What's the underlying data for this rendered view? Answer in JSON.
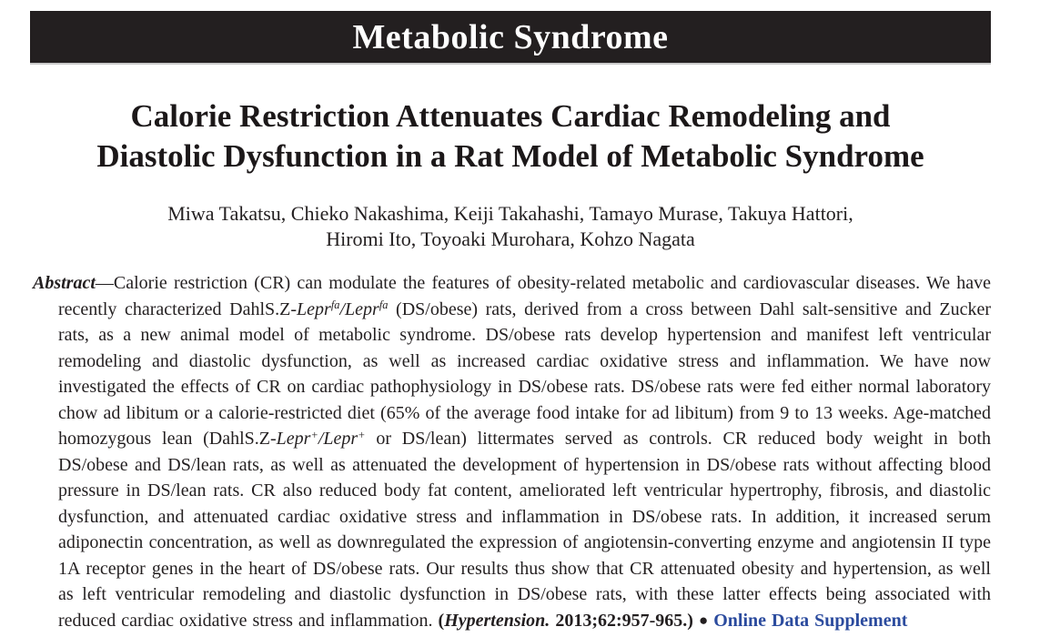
{
  "banner": {
    "title": "Metabolic Syndrome"
  },
  "article": {
    "title_line1": "Calorie Restriction Attenuates Cardiac Remodeling and",
    "title_line2": "Diastolic Dysfunction in a Rat Model of Metabolic Syndrome",
    "authors_line1": "Miwa Takatsu, Chieko Nakashima, Keiji Takahashi, Tamayo Murase, Takuya Hattori,",
    "authors_line2": "Hiromi Ito, Toyoaki Murohara, Kohzo Nagata"
  },
  "abstract": {
    "segments": [
      {
        "t": "Abstract",
        "s": "bi"
      },
      {
        "t": "—Calorie restriction (CR) can modulate the features of obesity-related metabolic and cardiovascular diseases. We have recently characterized DahlS.Z-",
        "s": "n"
      },
      {
        "t": "Lepr",
        "s": "i"
      },
      {
        "t": "fa",
        "s": "isup"
      },
      {
        "t": "/Lepr",
        "s": "i"
      },
      {
        "t": "fa",
        "s": "isup"
      },
      {
        "t": " (DS/obese) rats, derived from a cross between Dahl salt-sensitive and Zucker rats, as a new animal model of metabolic syndrome. DS/obese rats develop hypertension and manifest left ventricular remodeling and diastolic dysfunction, as well as increased cardiac oxidative stress and inflammation. We have now investigated the effects of CR on cardiac pathophysiology in DS/obese rats. DS/obese rats were fed either normal laboratory chow ad libitum or a calorie-restricted diet (65% of the average food intake for ad libitum) from 9 to 13 weeks. Age-matched homozygous lean (DahlS.Z-",
        "s": "n"
      },
      {
        "t": "Lepr",
        "s": "i"
      },
      {
        "t": "+",
        "s": "isup"
      },
      {
        "t": "/Lepr",
        "s": "i"
      },
      {
        "t": "+",
        "s": "isup"
      },
      {
        "t": " or DS/lean) littermates served as controls. CR reduced body weight in both DS/obese and DS/lean rats, as well as attenuated the development of hypertension in DS/obese rats without affecting blood pressure in DS/lean rats. CR also reduced body fat content, ameliorated left ventricular hypertrophy, fibrosis, and diastolic dysfunction, and attenuated cardiac oxidative stress and inflammation in DS/obese rats. In addition, it increased serum adiponectin concentration, as well as downregulated the expression of angiotensin-converting enzyme and angiotensin II type 1A receptor genes in the heart of DS/obese rats. Our results thus show that CR attenuated obesity and hypertension, as well as left ventricular remodeling and diastolic dysfunction in DS/obese rats, with these latter effects being associated with reduced cardiac oxidative stress and inflammation. ",
        "s": "n"
      },
      {
        "t": "(",
        "s": "b"
      },
      {
        "t": "Hypertension.",
        "s": "bi"
      },
      {
        "t": " 2013;62:957-965.)",
        "s": "b"
      },
      {
        "t": " ",
        "s": "n"
      },
      {
        "t": "●",
        "s": "bullet"
      },
      {
        "t": " ",
        "s": "n"
      },
      {
        "t": "Online Data Supplement",
        "s": "link"
      }
    ]
  },
  "colors": {
    "banner_bg": "#231f20",
    "banner_text": "#ffffff",
    "body_text": "#231f20",
    "link_blue": "#2b4b9e"
  }
}
